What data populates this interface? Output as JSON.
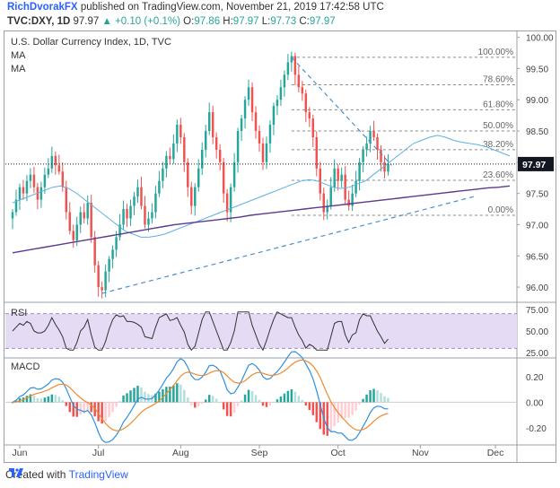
{
  "header": {
    "author": "RichDvorakFX",
    "published": "published on TradingView.com, November 21, 2019 17:42:58 UTC",
    "symbol": "TVC:DXY, 1D",
    "last": "97.97",
    "change_arrow": "▲",
    "change": "+0.10 (+0.1%)",
    "o_label": "O:",
    "o_value": "97.86",
    "h_label": "H:",
    "h_value": "97.97",
    "l_label": "L:",
    "l_value": "97.73",
    "c_label": "C:",
    "c_value": "97.97"
  },
  "chart_data": {
    "type": "candlestick",
    "title": "U.S. Dollar Currency Index, 1D, TVC",
    "legend": [
      "MA",
      "MA"
    ],
    "ylim": [
      95.8,
      100.08
    ],
    "yticks": [
      "100.00",
      "99.50",
      "99.00",
      "98.50",
      "98.00",
      "97.50",
      "97.00",
      "96.50",
      "96.00"
    ],
    "ytick_values": [
      100,
      99.5,
      99,
      98.5,
      98,
      97.5,
      97,
      96.5,
      96
    ],
    "last_price_label": "97.97",
    "last_price": 97.97,
    "xtick_labels": [
      "Jun",
      "Jul",
      "Aug",
      "Sep",
      "Oct",
      "Nov",
      "Dec"
    ],
    "xtick_positions": [
      2,
      24,
      47,
      69,
      91,
      114,
      135
    ],
    "fib_levels": [
      {
        "label": "100.00%",
        "value": 99.68
      },
      {
        "label": "78.60%",
        "value": 99.24
      },
      {
        "label": "61.80%",
        "value": 98.84
      },
      {
        "label": "50.00%",
        "value": 98.5
      },
      {
        "label": "38.20%",
        "value": 98.2
      },
      {
        "label": "23.60%",
        "value": 97.71
      },
      {
        "label": "0.00%",
        "value": 97.15
      }
    ],
    "closes": [
      97.2,
      97.4,
      97.6,
      97.5,
      97.7,
      97.8,
      97.6,
      97.4,
      97.6,
      97.8,
      97.9,
      98.1,
      97.95,
      97.85,
      97.6,
      97.2,
      96.9,
      96.75,
      97.0,
      97.2,
      97.1,
      97.35,
      96.8,
      96.35,
      96.0,
      95.95,
      96.25,
      96.45,
      96.6,
      96.8,
      97.0,
      97.25,
      97.1,
      97.3,
      97.45,
      97.6,
      97.3,
      97.0,
      97.1,
      97.2,
      97.5,
      97.7,
      97.9,
      98.1,
      98.05,
      98.3,
      98.6,
      98.4,
      98.0,
      97.6,
      97.3,
      97.6,
      97.9,
      98.2,
      98.5,
      98.8,
      98.4,
      98.2,
      98.0,
      97.5,
      97.2,
      97.6,
      98.0,
      98.5,
      98.7,
      99.0,
      99.2,
      98.8,
      98.5,
      98.3,
      98.0,
      98.3,
      98.6,
      98.9,
      99.0,
      99.2,
      99.4,
      99.6,
      99.7,
      99.4,
      99.2,
      99.1,
      98.8,
      98.7,
      98.4,
      97.9,
      97.5,
      97.2,
      97.3,
      97.6,
      97.9,
      97.7,
      97.8,
      97.4,
      97.3,
      97.5,
      97.7,
      98.0,
      98.2,
      98.3,
      98.5,
      98.4,
      98.2,
      98.0,
      97.85,
      97.97
    ],
    "ma_fast": [
      97.35,
      97.4,
      97.45,
      97.5,
      97.55,
      97.6,
      97.62,
      97.58,
      97.5,
      97.4,
      97.3,
      97.2,
      97.1,
      97.0,
      96.9,
      96.85,
      96.8,
      96.8,
      96.82,
      96.85,
      96.9,
      96.95,
      97.0,
      97.05,
      97.1,
      97.15,
      97.2,
      97.25,
      97.3,
      97.35,
      97.4,
      97.45,
      97.5,
      97.55,
      97.6,
      97.65,
      97.7,
      97.72,
      97.7,
      97.65,
      97.6,
      97.58,
      97.6,
      97.65,
      97.7,
      97.8,
      97.9,
      98.0,
      98.1,
      98.2,
      98.3,
      98.35,
      98.4,
      98.43,
      98.4,
      98.35,
      98.32,
      98.3,
      98.28,
      98.25,
      98.2,
      98.15,
      98.1
    ],
    "ma_fast_start": 0,
    "ma_slow": [
      96.55,
      96.58,
      96.61,
      96.64,
      96.67,
      96.7,
      96.73,
      96.76,
      96.79,
      96.82,
      96.85,
      96.88,
      96.91,
      96.94,
      96.97,
      97.0,
      97.02,
      97.04,
      97.06,
      97.08,
      97.1,
      97.12,
      97.15,
      97.17,
      97.19,
      97.21,
      97.23,
      97.25,
      97.27,
      97.29,
      97.31,
      97.33,
      97.35,
      97.37,
      97.39,
      97.41,
      97.43,
      97.45,
      97.47,
      97.49,
      97.51,
      97.53,
      97.55,
      97.57,
      97.59,
      97.6,
      97.62
    ],
    "trendline_upper": {
      "from": [
        78,
        99.68
      ],
      "to": [
        106,
        97.95
      ]
    },
    "trendline_lower": {
      "from": [
        25,
        95.9
      ],
      "to": [
        129,
        97.45
      ]
    },
    "rsi": {
      "label": "RSI",
      "yticks": [
        "75.00",
        "50.00",
        "25.00"
      ],
      "ytick_values": [
        75,
        50,
        25
      ],
      "ylim": [
        20,
        80
      ],
      "band": [
        30,
        70
      ]
    },
    "macd": {
      "label": "MACD",
      "yticks": [
        "0.20",
        "0.00",
        "-0.20"
      ],
      "ytick_values": [
        0.2,
        0.0,
        -0.2
      ],
      "ylim": [
        -0.32,
        0.34
      ]
    }
  },
  "footer": {
    "created_with": "Created with",
    "brand": "TradingView"
  },
  "colors": {
    "up": "#26a69a",
    "down": "#ef5350",
    "ma_fast": "#5fb0e0",
    "ma_slow": "#5c3a8f",
    "dashed": "#4a8fd0",
    "rsi_line": "#333333",
    "rsi_band": "#e6dbf5",
    "macd_line": "#2e8fe0",
    "signal_line": "#ee8a2d"
  }
}
